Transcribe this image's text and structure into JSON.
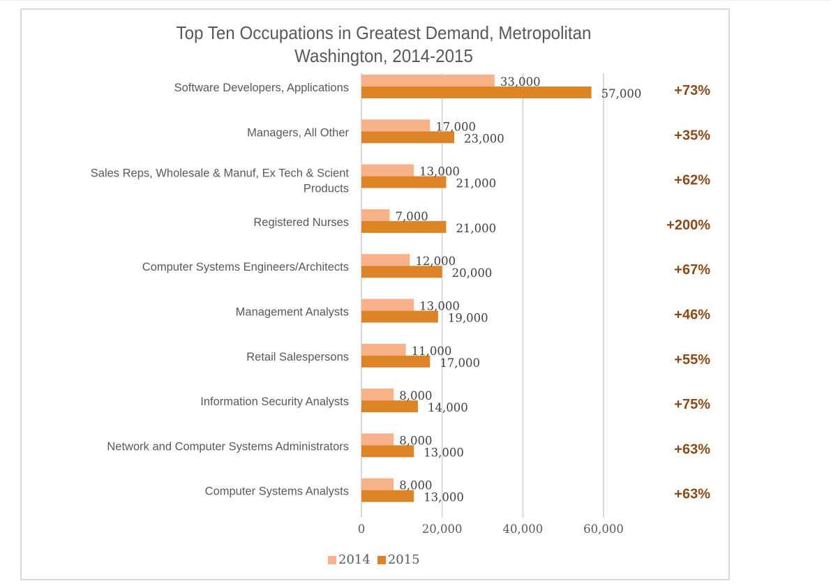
{
  "chart_data": {
    "type": "bar",
    "orientation": "horizontal",
    "title": "Top Ten Occupations in Greatest Demand, Metropolitan Washington, 2014-2015",
    "title_lines": [
      "Top Ten Occupations in Greatest Demand, Metropolitan",
      "Washington, 2014-2015"
    ],
    "categories": [
      "Software Developers, Applications",
      "Managers, All Other",
      "Sales Reps, Wholesale & Manuf, Ex Tech & Scient Products",
      "Registered Nurses",
      "Computer Systems Engineers/Architects",
      "Management Analysts",
      "Retail Salespersons",
      "Information Security Analysts",
      "Network and Computer Systems Administrators",
      "Computer Systems Analysts"
    ],
    "category_lines": [
      [
        "Software Developers, Applications"
      ],
      [
        "Managers, All Other"
      ],
      [
        "Sales Reps, Wholesale & Manuf, Ex Tech & Scient",
        "Products"
      ],
      [
        "Registered Nurses"
      ],
      [
        "Computer Systems Engineers/Architects"
      ],
      [
        "Management Analysts"
      ],
      [
        "Retail Salespersons"
      ],
      [
        "Information Security Analysts"
      ],
      [
        "Network and Computer Systems Administrators"
      ],
      [
        "Computer Systems Analysts"
      ]
    ],
    "series": [
      {
        "name": "2014",
        "color": "#f8b28a",
        "values": [
          33000,
          17000,
          13000,
          7000,
          12000,
          13000,
          11000,
          8000,
          8000,
          8000
        ]
      },
      {
        "name": "2015",
        "color": "#dd8427",
        "values": [
          57000,
          23000,
          21000,
          21000,
          20000,
          19000,
          17000,
          14000,
          13000,
          13000
        ]
      }
    ],
    "data_labels": {
      "2014": [
        "33,000",
        "17,000",
        "13,000",
        "7,000",
        "12,000",
        "13,000",
        "11,000",
        "8,000",
        "8,000",
        "8,000"
      ],
      "2015": [
        "57,000",
        "23,000",
        "21,000",
        "21,000",
        "20,000",
        "19,000",
        "17,000",
        "14,000",
        "13,000",
        "13,000"
      ]
    },
    "annotations": [
      "+73%",
      "+35%",
      "+62%",
      "+200%",
      "+67%",
      "+46%",
      "+55%",
      "+75%",
      "+63%",
      "+63%"
    ],
    "annotation_color": "#8c4a1a",
    "xlim": [
      0,
      70000
    ],
    "xticks": [
      0,
      20000,
      40000,
      60000
    ],
    "xtick_labels": [
      "0",
      "20,000",
      "40,000",
      "60,000"
    ],
    "xlabel": "",
    "ylabel": "",
    "grid": true,
    "legend_position": "bottom"
  }
}
